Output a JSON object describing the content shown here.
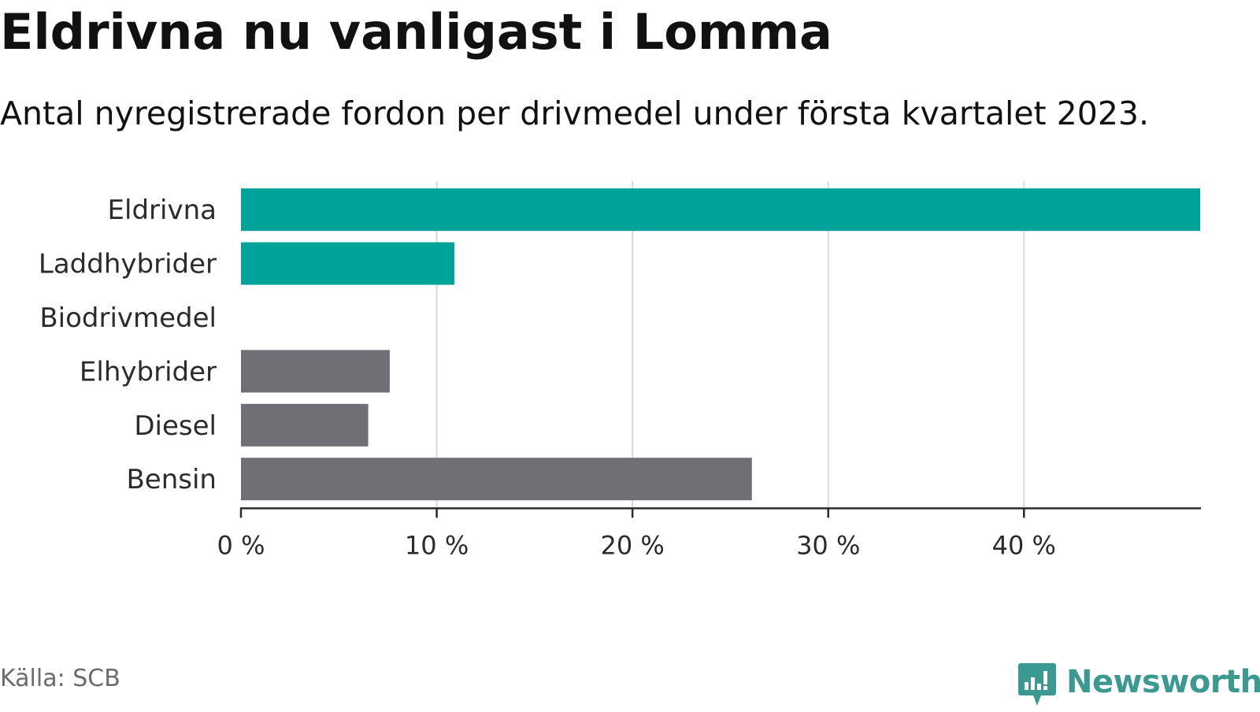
{
  "header": {
    "title": "Eldrivna nu vanligast i Lomma",
    "subtitle": "Antal nyregistrerade fordon per drivmedel under första kvartalet 2023."
  },
  "footer": {
    "source": "Källa: SCB",
    "logo_text": "Newsworthy",
    "logo_icon": "newsworthy-chart-icon"
  },
  "colors": {
    "highlight": "#00a39a",
    "default": "#706f75",
    "grid": "#d9d9d9",
    "axis": "#2b2b2b",
    "logo": "#3a9a91"
  },
  "chart_data": {
    "type": "bar",
    "orientation": "horizontal",
    "title": "Eldrivna nu vanligast i Lomma",
    "subtitle": "Antal nyregistrerade fordon per drivmedel under första kvartalet 2023.",
    "categories": [
      "Eldrivna",
      "Laddhybrider",
      "Biodrivmedel",
      "Elhybrider",
      "Diesel",
      "Bensin"
    ],
    "values": [
      49,
      10.9,
      0,
      7.6,
      6.5,
      26.1
    ],
    "highlighted": [
      true,
      true,
      false,
      false,
      false,
      false
    ],
    "xlim": [
      0,
      49
    ],
    "xticks": [
      0,
      10,
      20,
      30,
      40
    ],
    "xtick_labels": [
      "0 %",
      "10 %",
      "20 %",
      "30 %",
      "40 %"
    ],
    "unit": "%",
    "grid": true
  }
}
